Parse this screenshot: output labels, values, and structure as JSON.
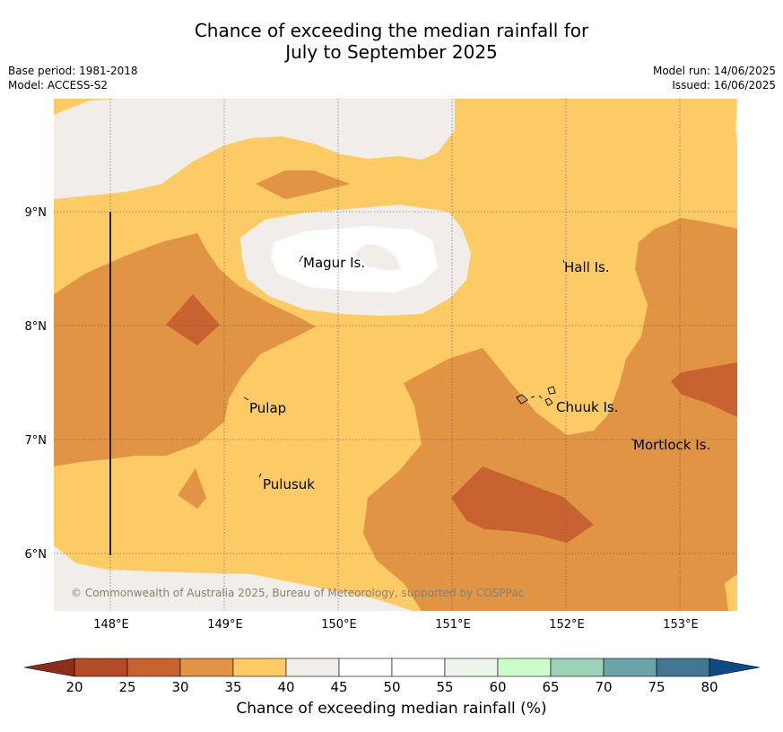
{
  "title": {
    "line1": "Chance of exceeding the median rainfall for",
    "line2": "July to September 2025"
  },
  "meta": {
    "base_period": "Base period: 1981-2018",
    "model": "Model: ACCESS-S2",
    "model_run": "Model run: 14/06/2025",
    "issued": "Issued: 16/06/2025"
  },
  "copyright": "© Commonwealth of Australia 2025, Bureau of Meteorology, supported by COSPPac",
  "axes": {
    "x_ticks": [
      "148°E",
      "149°E",
      "150°E",
      "151°E",
      "152°E",
      "153°E"
    ],
    "y_ticks": [
      "9°N",
      "8°N",
      "7°N",
      "6°N"
    ]
  },
  "places": [
    {
      "name": "Magur Is.",
      "lon": 149.65,
      "lat": 8.56
    },
    {
      "name": "Hall Is.",
      "lon": 151.98,
      "lat": 8.52
    },
    {
      "name": "Pulap",
      "lon": 149.42,
      "lat": 7.27
    },
    {
      "name": "Chuuk Is.",
      "lon": 151.85,
      "lat": 7.28
    },
    {
      "name": "Mortlock Is.",
      "lon": 152.6,
      "lat": 6.95
    },
    {
      "name": "Pulusuk",
      "lon": 149.3,
      "lat": 6.6
    }
  ],
  "legend": {
    "title": "Chance of exceeding median rainfall (%)",
    "tick_labels": [
      "20",
      "25",
      "30",
      "35",
      "40",
      "45",
      "50",
      "55",
      "60",
      "65",
      "70",
      "75",
      "80"
    ],
    "colors": {
      "under20": "#8b2e1c",
      "20-25": "#b34b26",
      "25-30": "#c96231",
      "30-35": "#e09444",
      "35-40": "#fdcb66",
      "40-45": "#f1ede8",
      "45-50": "#ffffff",
      "50-55": "#ffffff",
      "55-60": "#ebf5ea",
      "60-65": "#ccfbcc",
      "65-70": "#9cd0b7",
      "70-75": "#6aa3a8",
      "75-80": "#417592",
      "over80": "#0f4a84"
    }
  }
}
